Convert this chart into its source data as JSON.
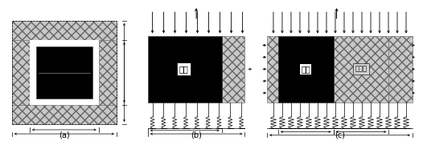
{
  "fig_bg": "#ffffff",
  "hatch_fc": "#c8c8c8",
  "hatch_ec": "#666666",
  "black_fc": "#000000",
  "label_a": "(a)",
  "label_b": "(b)",
  "label_c": "(c)",
  "text_meizhu": "煌柱",
  "text_chongtianti": "充填体",
  "arrow_color": "#000000",
  "dim_color": "#000000"
}
